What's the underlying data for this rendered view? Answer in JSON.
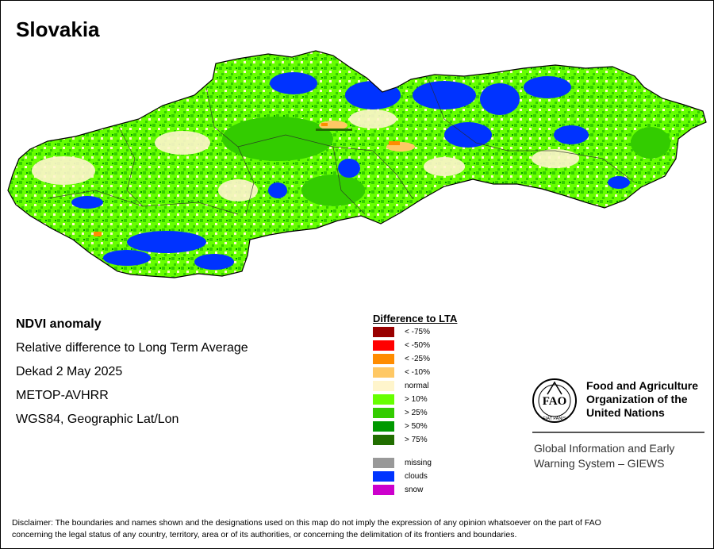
{
  "title": "Slovakia",
  "info": {
    "line1": "NDVI anomaly",
    "line2": "Relative difference to Long Term Average",
    "line3": "Dekad 2 May 2025",
    "line4": "METOP-AVHRR",
    "line5": "WGS84, Geographic Lat/Lon"
  },
  "legend": {
    "title": "Difference to LTA",
    "items": [
      {
        "label": "< -75%",
        "color": "#990000"
      },
      {
        "label": "< -50%",
        "color": "#ff0000"
      },
      {
        "label": "< -25%",
        "color": "#ff8c00"
      },
      {
        "label": "< -10%",
        "color": "#ffc864"
      },
      {
        "label": "normal",
        "color": "#fff5cc"
      },
      {
        "label": "> 10%",
        "color": "#66ff00"
      },
      {
        "label": "> 25%",
        "color": "#33cc00"
      },
      {
        "label": "> 50%",
        "color": "#009900"
      },
      {
        "label": "> 75%",
        "color": "#216e00"
      }
    ],
    "extra": [
      {
        "label": "missing",
        "color": "#999999"
      },
      {
        "label": "clouds",
        "color": "#0033ff"
      },
      {
        "label": "snow",
        "color": "#cc00cc"
      }
    ]
  },
  "fao": {
    "emblem_text": "FAO",
    "emblem_motto": "FIAT PANIS",
    "name_line1": "Food and Agriculture",
    "name_line2": "Organization of the",
    "name_line3": "United Nations",
    "giews_line1": "Global Information and Early",
    "giews_line2": "Warning System – GIEWS"
  },
  "disclaimer_line1": "Disclaimer: The boundaries and names shown and the designations used on this map do not imply the expression of any opinion whatsoever on the part of FAO",
  "disclaimer_line2": "concerning the legal status of any country, territory, area or of its authorities, or concerning the delimitation of its frontiers and boundaries."
}
